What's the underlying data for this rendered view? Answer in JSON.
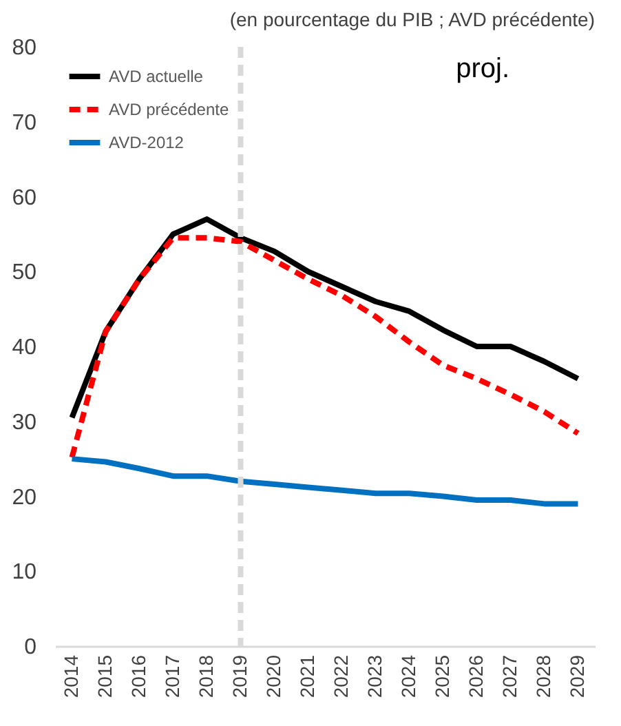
{
  "chart_data": {
    "type": "line",
    "subtitle": "(en pourcentage du PIB ; AVD précédente)",
    "categories": [
      "2014",
      "2015",
      "2016",
      "2017",
      "2018",
      "2019",
      "2020",
      "2021",
      "2022",
      "2023",
      "2024",
      "2025",
      "2026",
      "2027",
      "2028",
      "2029"
    ],
    "series": [
      {
        "name": "AVD actuelle",
        "color": "#000000",
        "line_style": "solid",
        "values": [
          30.5,
          42,
          49,
          55,
          57,
          54.5,
          52.7,
          50,
          48,
          46,
          44.7,
          42.2,
          40,
          40,
          38,
          35.7
        ]
      },
      {
        "name": "AVD précédente",
        "color": "#ff0000",
        "line_style": "dashed",
        "values": [
          25.2,
          42,
          49,
          54.5,
          54.5,
          54,
          51.5,
          49,
          46.8,
          44,
          40.6,
          37.5,
          35.7,
          33.6,
          31.3,
          28.4
        ]
      },
      {
        "name": "AVD-2012",
        "color": "#0070c0",
        "line_style": "solid",
        "values": [
          25,
          24.6,
          23.7,
          22.7,
          22.7,
          22,
          21.6,
          21.2,
          20.8,
          20.4,
          20.4,
          20,
          19.5,
          19.5,
          19,
          19
        ]
      }
    ],
    "ylim": [
      0,
      80
    ],
    "yticks": [
      0,
      10,
      20,
      30,
      40,
      50,
      60,
      70,
      80
    ],
    "grid": false,
    "legend": "top left",
    "marker": "none",
    "ref_lines": [
      {
        "axis": "x",
        "value": "2019",
        "color": "#d9d9d9",
        "line_style": "dashed"
      }
    ],
    "annotations": [
      "proj."
    ]
  }
}
